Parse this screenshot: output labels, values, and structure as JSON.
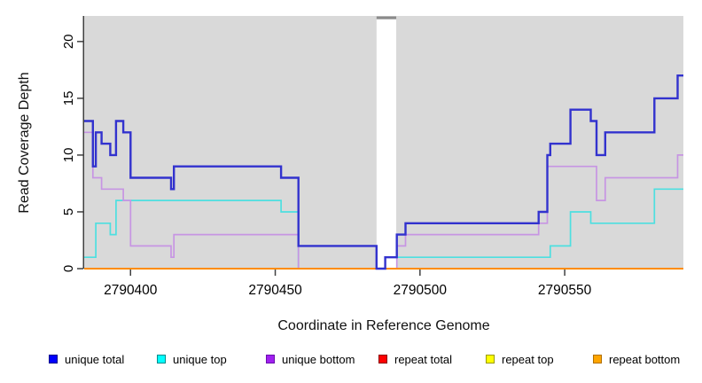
{
  "chart_data": {
    "type": "step-line",
    "title": "",
    "xlabel": "Coordinate in Reference Genome",
    "ylabel": "Read Coverage Depth",
    "xlim": [
      2790384,
      2790591
    ],
    "ylim": [
      0,
      22.25
    ],
    "x_ticks": [
      2790400,
      2790450,
      2790500,
      2790550
    ],
    "y_ticks": [
      0,
      5,
      10,
      15,
      20
    ],
    "grid": false,
    "panel_bg": "#d9d9d9",
    "axis_color": "#404040",
    "gap_region": {
      "start": 2790485,
      "end": 2790491.8,
      "fill": "#ffffff",
      "cap_color": "#8a8a8a"
    },
    "series": [
      {
        "name": "unique total",
        "color": "#3232ce",
        "width": 2.4,
        "z": 6,
        "points": [
          [
            2790384,
            13
          ],
          [
            2790387,
            9
          ],
          [
            2790388,
            12
          ],
          [
            2790390,
            11
          ],
          [
            2790393,
            10
          ],
          [
            2790395,
            13
          ],
          [
            2790397.5,
            12
          ],
          [
            2790400,
            8
          ],
          [
            2790414,
            7
          ],
          [
            2790415,
            9
          ],
          [
            2790452,
            8
          ],
          [
            2790458,
            2
          ],
          [
            2790485,
            0
          ],
          [
            2790488,
            1
          ],
          [
            2790492,
            3
          ],
          [
            2790495,
            4
          ],
          [
            2790541,
            5
          ],
          [
            2790544,
            10
          ],
          [
            2790545,
            11
          ],
          [
            2790552,
            14
          ],
          [
            2790559,
            13
          ],
          [
            2790561,
            10
          ],
          [
            2790564,
            12
          ],
          [
            2790581,
            15
          ],
          [
            2790589,
            17
          ]
        ]
      },
      {
        "name": "unique top",
        "color": "#4ddfe0",
        "width": 1.7,
        "z": 1,
        "points": [
          [
            2790384,
            1
          ],
          [
            2790388,
            4
          ],
          [
            2790393,
            3
          ],
          [
            2790395,
            6
          ],
          [
            2790452,
            5
          ],
          [
            2790458,
            0
          ],
          [
            2790488,
            1
          ],
          [
            2790545,
            2
          ],
          [
            2790552,
            5
          ],
          [
            2790559,
            4
          ],
          [
            2790581,
            7
          ]
        ]
      },
      {
        "name": "unique bottom",
        "color": "#c795e3",
        "width": 1.7,
        "z": 2,
        "points": [
          [
            2790384,
            12
          ],
          [
            2790387,
            8
          ],
          [
            2790390,
            7
          ],
          [
            2790397.5,
            6
          ],
          [
            2790400,
            2
          ],
          [
            2790414,
            1
          ],
          [
            2790415,
            3
          ],
          [
            2790458,
            0
          ],
          [
            2790492,
            2
          ],
          [
            2790495,
            3
          ],
          [
            2790541,
            4
          ],
          [
            2790544,
            9
          ],
          [
            2790561,
            6
          ],
          [
            2790564,
            8
          ],
          [
            2790589,
            10
          ]
        ]
      },
      {
        "name": "repeat total",
        "color": "#cc0000",
        "width": 1.5,
        "z": 3,
        "points": [
          [
            2790384,
            0
          ]
        ]
      },
      {
        "name": "repeat top",
        "color": "#ffff00",
        "width": 1.5,
        "z": 4,
        "points": [
          [
            2790384,
            0
          ]
        ]
      },
      {
        "name": "repeat bottom",
        "color": "#ff8c00",
        "width": 2.1,
        "z": 5,
        "points": [
          [
            2790384,
            0
          ]
        ]
      }
    ]
  },
  "legend": {
    "items": [
      {
        "label": "unique total",
        "fill": "#0000ff",
        "border": "#00008b"
      },
      {
        "label": "unique top",
        "fill": "#00ffff",
        "border": "#008b8b"
      },
      {
        "label": "unique bottom",
        "fill": "#a020f0",
        "border": "#6a0dad"
      },
      {
        "label": "repeat total",
        "fill": "#ff0000",
        "border": "#8b0000"
      },
      {
        "label": "repeat top",
        "fill": "#ffff00",
        "border": "#9a9a00"
      },
      {
        "label": "repeat bottom",
        "fill": "#ffa500",
        "border": "#b06f00"
      }
    ]
  }
}
